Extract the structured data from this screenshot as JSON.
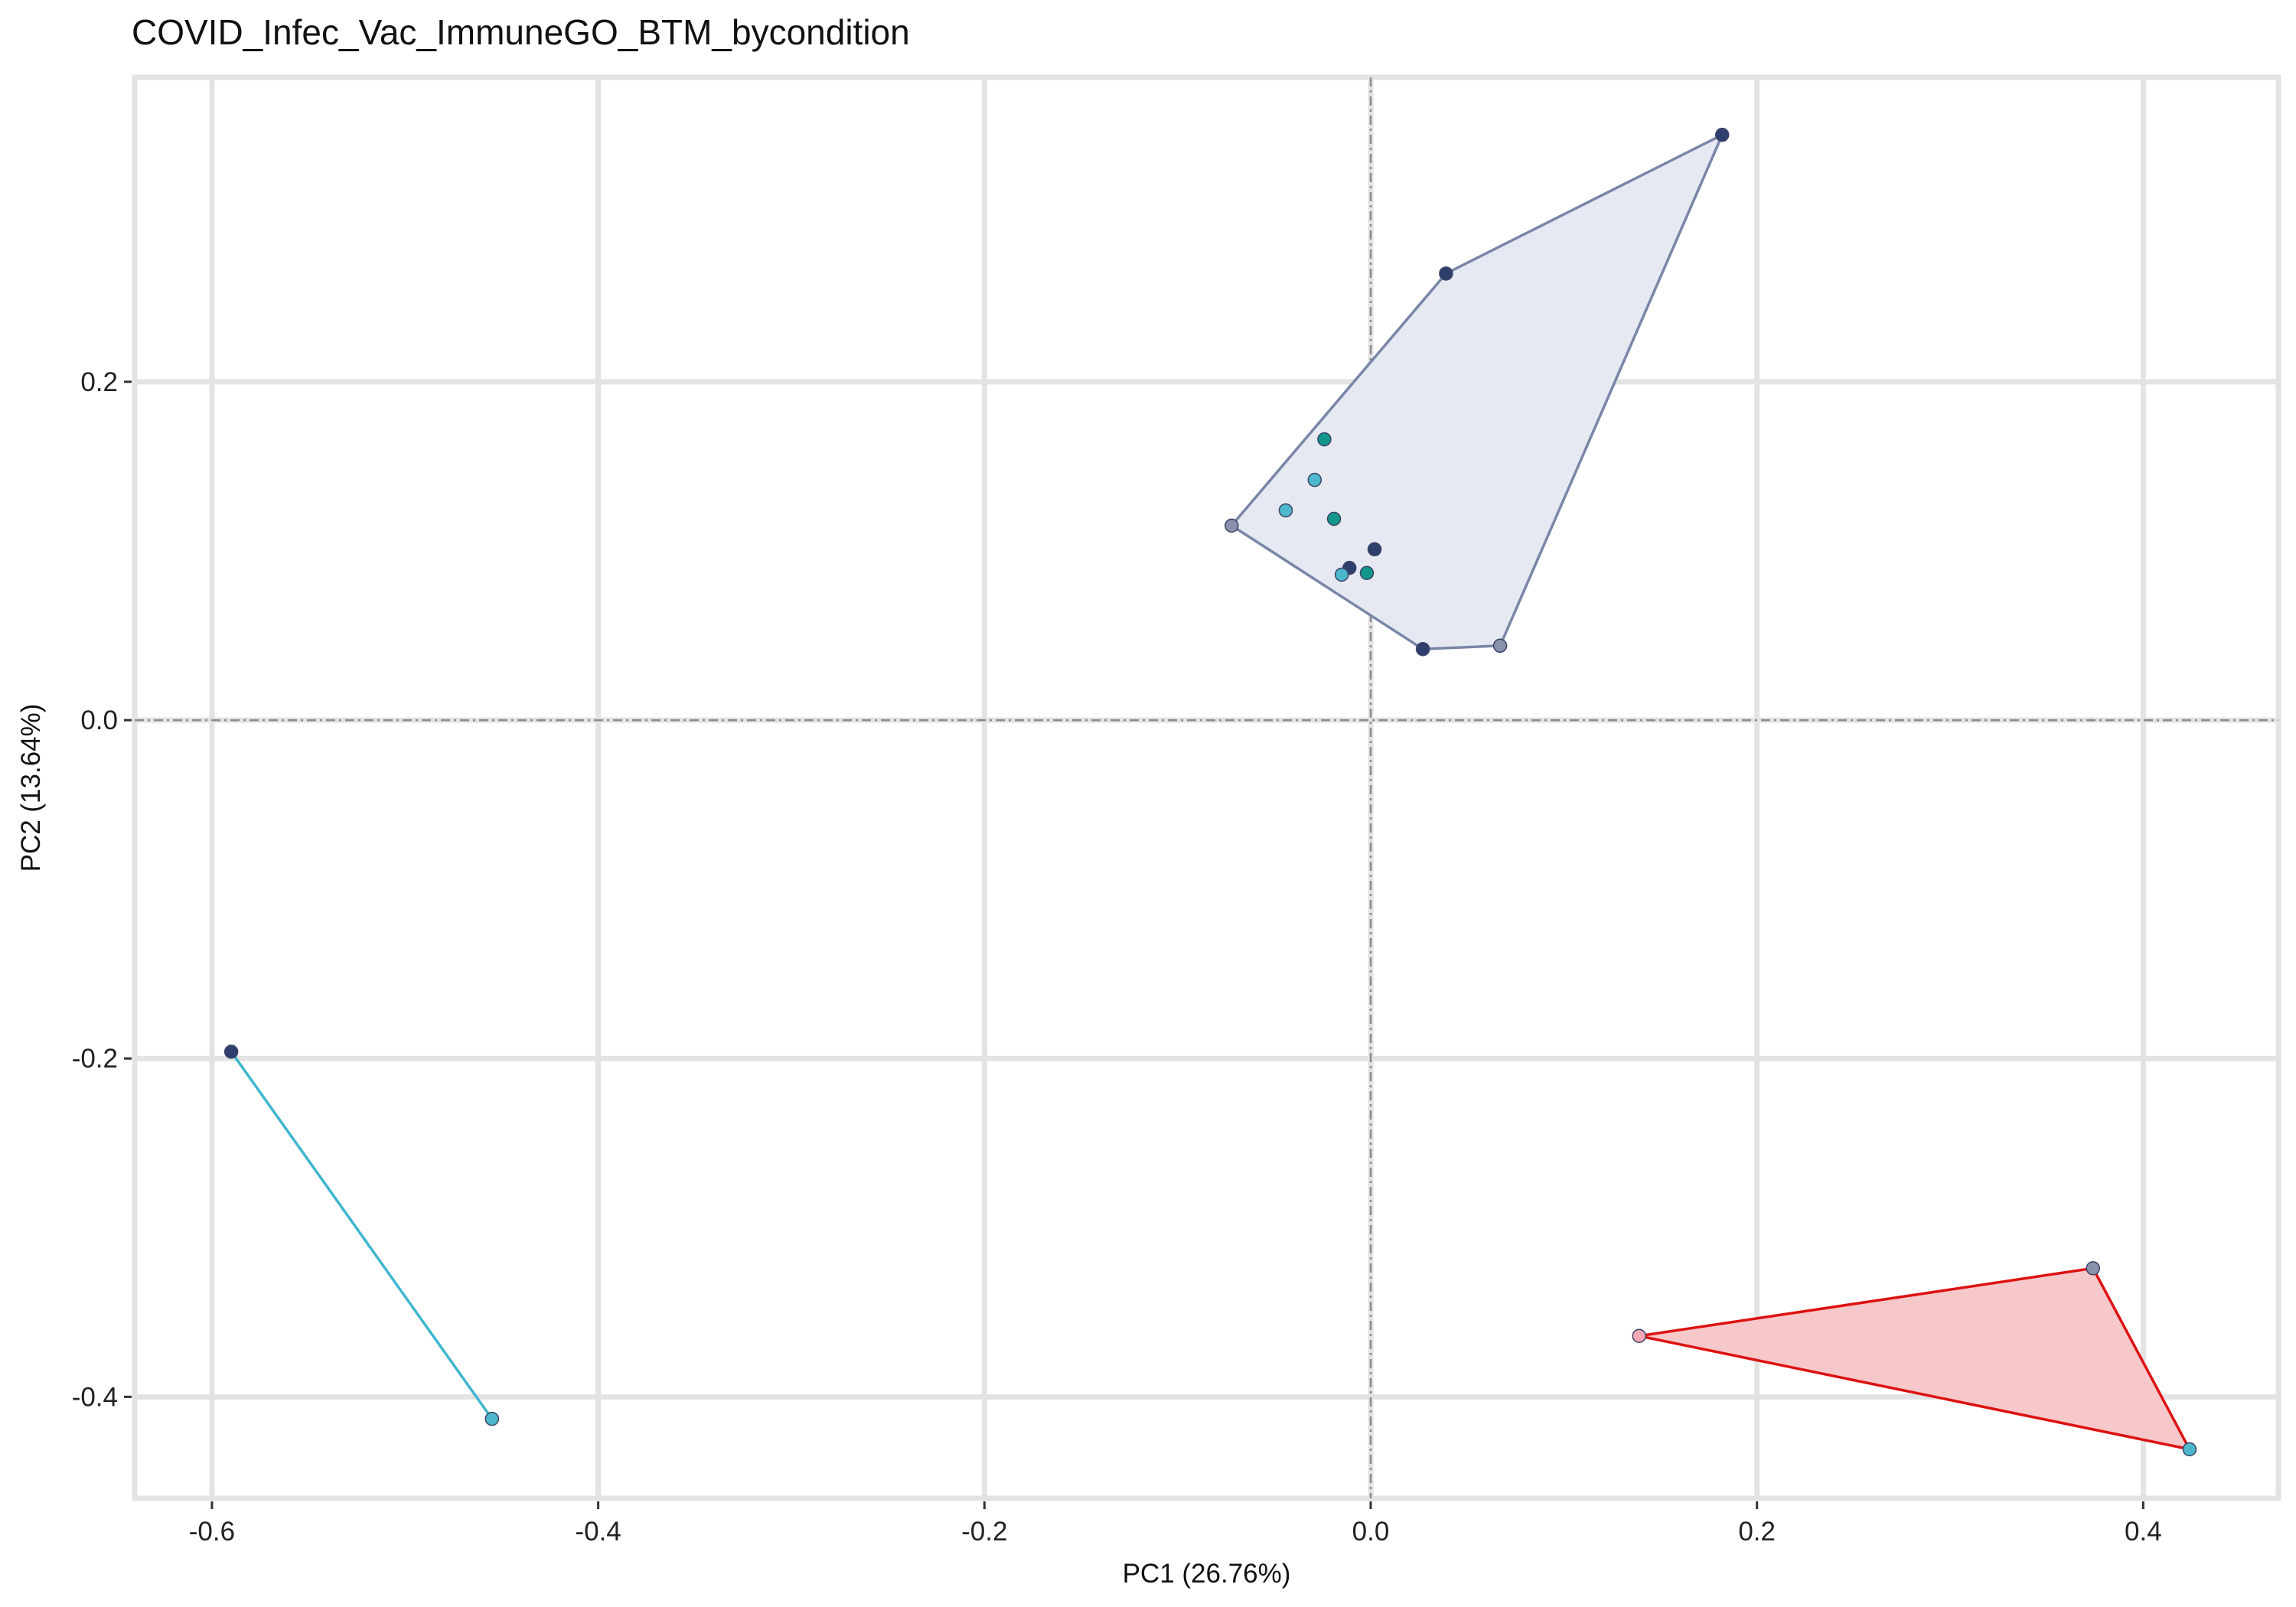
{
  "chart_data": {
    "type": "scatter",
    "title": "COVID_Infec_Vac_ImmuneGO_BTM_bycondition",
    "xlabel": "PC1 (26.76%)",
    "ylabel": "PC2 (13.64%)",
    "xlim": [
      -0.64,
      0.47
    ],
    "ylim": [
      -0.46,
      0.38
    ],
    "xticks": [
      -0.6,
      -0.4,
      -0.2,
      0.0,
      0.2,
      0.4
    ],
    "xtick_labels": [
      "-0.6",
      "-0.4",
      "-0.2",
      "0.0",
      "0.2",
      "0.4"
    ],
    "yticks": [
      -0.4,
      -0.2,
      0.0,
      0.2
    ],
    "ytick_labels": [
      "-0.4",
      "-0.2",
      "0.0",
      "0.2"
    ],
    "grid": true,
    "reference_lines": {
      "x": 0,
      "y": 0
    },
    "groups": [
      {
        "hull_color": "#7a86a8",
        "hull_fill": "#e6e9f1",
        "hull": [
          [
            -0.072,
            0.115
          ],
          [
            0.039,
            0.264
          ],
          [
            0.182,
            0.346
          ],
          [
            0.067,
            0.044
          ],
          [
            0.027,
            0.042
          ]
        ],
        "points": [
          {
            "x": 0.039,
            "y": 0.264,
            "color": "#2e3f6e"
          },
          {
            "x": 0.182,
            "y": 0.346,
            "color": "#2e3f6e"
          },
          {
            "x": -0.072,
            "y": 0.115,
            "color": "#8a91ad"
          },
          {
            "x": 0.067,
            "y": 0.044,
            "color": "#8a91ad"
          },
          {
            "x": 0.027,
            "y": 0.042,
            "color": "#2e3f6e"
          },
          {
            "x": -0.024,
            "y": 0.166,
            "color": "#12978a"
          },
          {
            "x": -0.029,
            "y": 0.142,
            "color": "#4db8cc"
          },
          {
            "x": -0.044,
            "y": 0.124,
            "color": "#4db8cc"
          },
          {
            "x": -0.019,
            "y": 0.119,
            "color": "#12978a"
          },
          {
            "x": 0.002,
            "y": 0.101,
            "color": "#2e3f6e"
          },
          {
            "x": -0.011,
            "y": 0.09,
            "color": "#2e3f6e"
          },
          {
            "x": -0.015,
            "y": 0.086,
            "color": "#4db8cc"
          },
          {
            "x": -0.002,
            "y": 0.087,
            "color": "#12978a"
          }
        ]
      },
      {
        "hull_color": "#3fb6cf",
        "hull_fill": "none",
        "hull": [
          [
            -0.59,
            -0.196
          ],
          [
            -0.455,
            -0.413
          ]
        ],
        "points": [
          {
            "x": -0.59,
            "y": -0.196,
            "color": "#2e3f6e"
          },
          {
            "x": -0.455,
            "y": -0.413,
            "color": "#4db8cc"
          }
        ]
      },
      {
        "hull_color": "#dd1111",
        "hull_fill": "#f7c8ca",
        "hull": [
          [
            0.139,
            -0.364
          ],
          [
            0.374,
            -0.324
          ],
          [
            0.424,
            -0.431
          ]
        ],
        "points": [
          {
            "x": 0.139,
            "y": -0.364,
            "color": "#f4a7b9"
          },
          {
            "x": 0.374,
            "y": -0.324,
            "color": "#8a91ad"
          },
          {
            "x": 0.424,
            "y": -0.431,
            "color": "#4db8cc"
          }
        ]
      }
    ]
  }
}
